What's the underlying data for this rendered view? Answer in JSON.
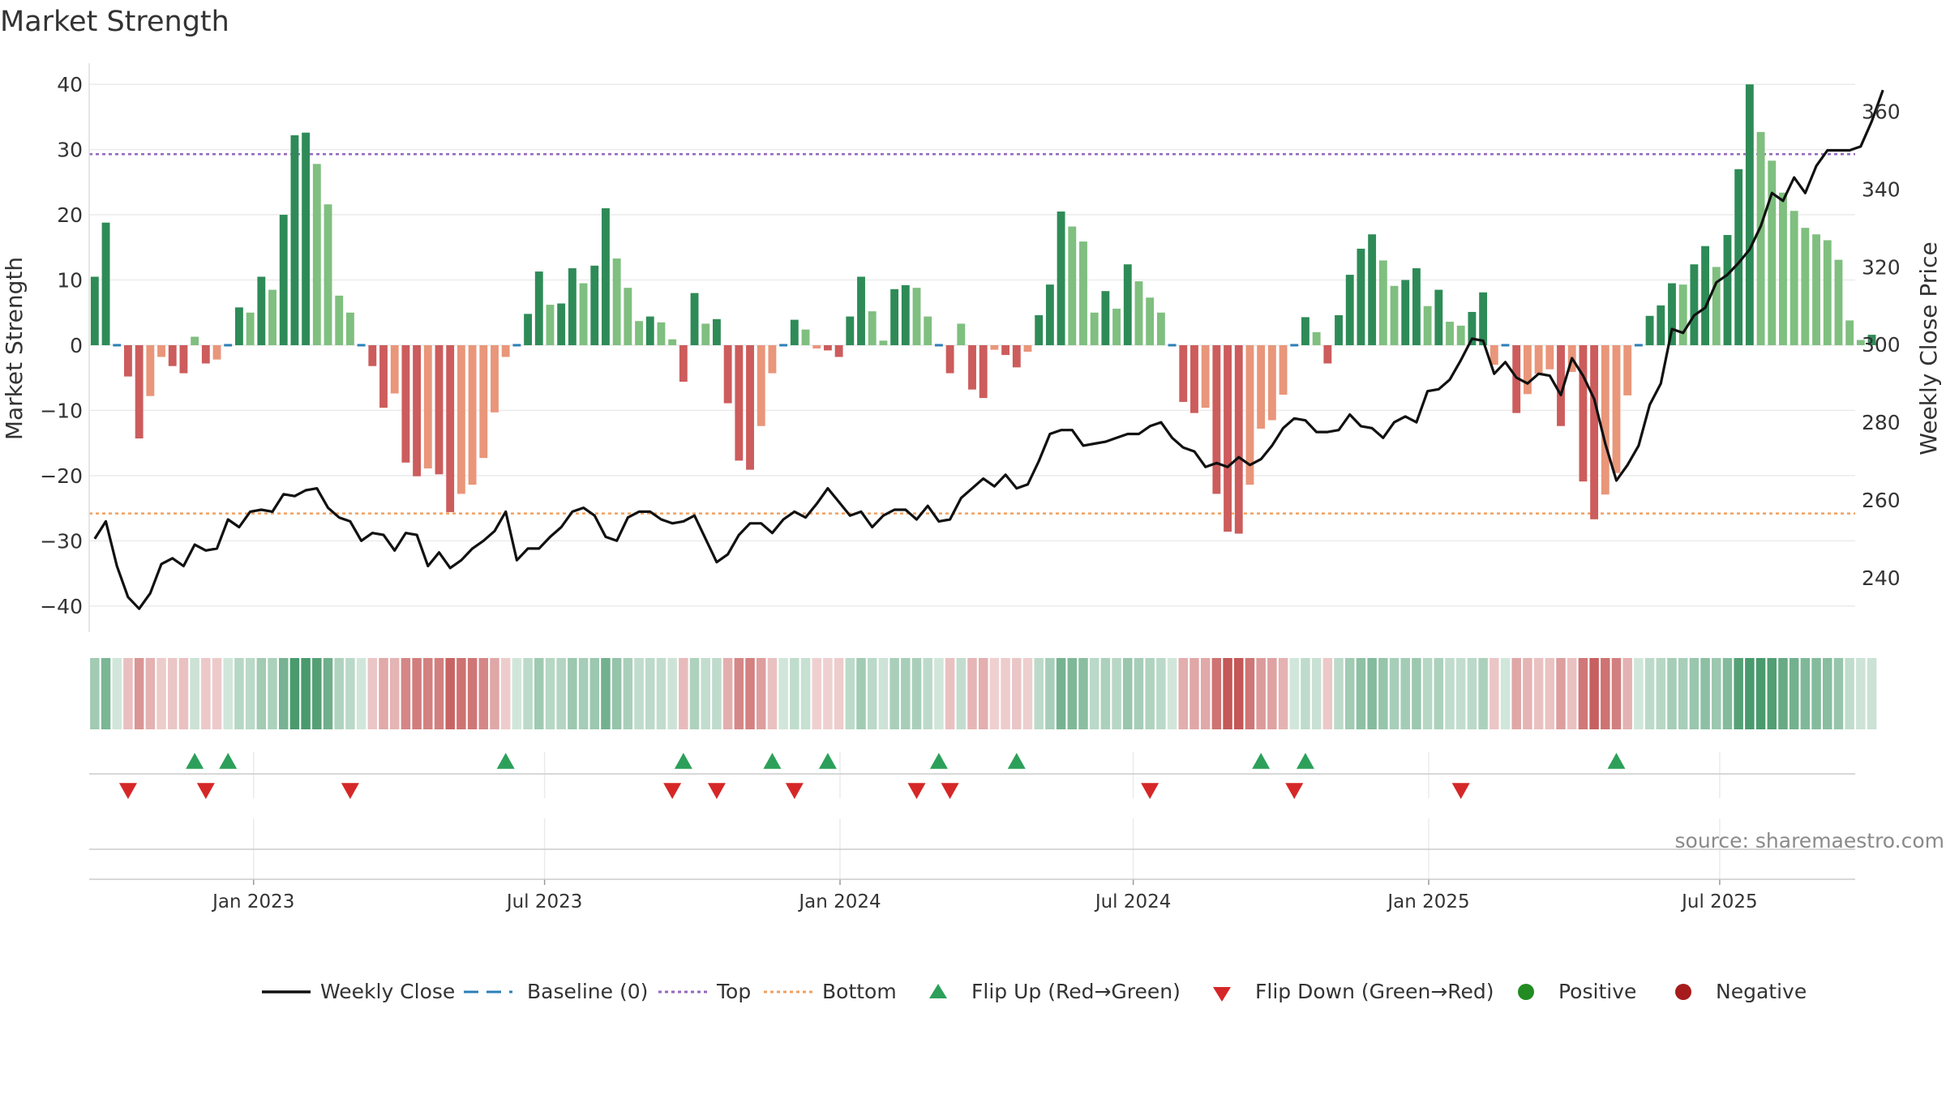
{
  "chart_data": {
    "type": "bar+line",
    "title": "Market Strength",
    "ylabel_left": "Market Strength",
    "ylabel_right": "Weekly Close Price",
    "source": "source: sharemaestro.com",
    "left_ylim": [
      -44,
      43
    ],
    "left_ticks": [
      40,
      30,
      20,
      10,
      0,
      -10,
      -20,
      -30,
      -40
    ],
    "left_tick_labels": [
      "40",
      "30",
      "20",
      "10",
      "0",
      "−10",
      "−20",
      "−30",
      "−40"
    ],
    "right_ylim": [
      226,
      372
    ],
    "right_ticks": [
      240,
      260,
      280,
      300,
      320,
      340,
      360
    ],
    "right_tick_labels": [
      "240",
      "260",
      "280",
      "300",
      "320",
      "340",
      "360"
    ],
    "top_level": 29.3,
    "bottom_level": -25.8,
    "x_range_weeks": [
      0,
      159
    ],
    "date_ticks": [
      {
        "label": "Jan 2023",
        "week": 14.8
      },
      {
        "label": "Jul 2023",
        "week": 41
      },
      {
        "label": "Jan 2024",
        "week": 67.6
      },
      {
        "label": "Jul 2024",
        "week": 94
      },
      {
        "label": "Jan 2025",
        "week": 120.6
      },
      {
        "label": "Jul 2025",
        "week": 146.8
      }
    ],
    "strength": [
      10.5,
      18.8,
      0,
      -4.8,
      -14.3,
      -7.8,
      -1.8,
      -3.2,
      -4.3,
      1.3,
      -2.8,
      -2.2,
      0,
      5.8,
      5,
      10.5,
      8.5,
      20,
      32.2,
      32.6,
      27.8,
      21.6,
      7.6,
      5,
      0,
      -3.2,
      -9.6,
      -7.4,
      -18,
      -20.1,
      -18.9,
      -19.8,
      -25.6,
      -22.8,
      -21.4,
      -17.3,
      -10.3,
      -1.8,
      0,
      4.8,
      11.3,
      6.2,
      6.4,
      11.8,
      9.5,
      12.2,
      21,
      13.3,
      8.8,
      3.7,
      4.4,
      3.5,
      0.9,
      -5.6,
      8,
      3.3,
      4,
      -8.9,
      -17.7,
      -19.1,
      -12.4,
      -4.3,
      0,
      3.9,
      2.4,
      -0.5,
      -0.8,
      -1.8,
      4.4,
      10.5,
      5.2,
      0.7,
      8.6,
      9.2,
      8.8,
      4.4,
      0,
      -4.3,
      3.3,
      -6.8,
      -8.1,
      -0.7,
      -1.5,
      -3.4,
      -1,
      4.6,
      9.3,
      20.5,
      18.2,
      15.9,
      5,
      8.3,
      5.6,
      12.4,
      9.8,
      7.3,
      5,
      0,
      -8.7,
      -10.4,
      -9.6,
      -22.8,
      -28.6,
      -28.9,
      -21.4,
      -12.8,
      -11.5,
      -7.6,
      0,
      4.3,
      2,
      -2.8,
      4.6,
      10.8,
      14.8,
      17,
      13,
      9.1,
      10,
      11.8,
      6,
      8.5,
      3.6,
      3,
      5.1,
      8.1,
      -3,
      0,
      -10.4,
      -7.5,
      -4.4,
      -3.7,
      -12.4,
      -4.1,
      -20.9,
      -26.7,
      -22.9,
      -19.6,
      -7.7,
      0,
      4.5,
      6.1,
      9.5,
      9.3,
      12.4,
      15.2,
      12,
      16.9,
      27,
      40,
      32.7,
      28.3,
      23.4,
      20.6,
      18,
      17,
      16.1,
      13.1,
      3.8,
      0.8,
      1.6
    ],
    "close": [
      250,
      254.5,
      243,
      235,
      232,
      236,
      243.5,
      245,
      243,
      248.5,
      247,
      247.5,
      255,
      253,
      257,
      257.5,
      257,
      261.5,
      261,
      262.5,
      263,
      258,
      255.5,
      254.5,
      249.5,
      251.5,
      251,
      247,
      251.5,
      251,
      243,
      246.5,
      242.5,
      244.5,
      247.5,
      249.5,
      252,
      257,
      244.5,
      247.5,
      247.5,
      250.5,
      253,
      257,
      258,
      256,
      250.5,
      249.5,
      255.5,
      257,
      257,
      255,
      254,
      254.5,
      256,
      250,
      244,
      246,
      251,
      254,
      254,
      251.5,
      255,
      257,
      255.5,
      259,
      263,
      259.5,
      256,
      257,
      253,
      256,
      257.5,
      257.5,
      255,
      258.5,
      254.5,
      255,
      260.5,
      263,
      265.5,
      263.5,
      266.5,
      263,
      264,
      270,
      277,
      278,
      278,
      274,
      274.5,
      275,
      276,
      277,
      277,
      279,
      280,
      276,
      273.5,
      272.5,
      268.5,
      269.5,
      268.5,
      271,
      269,
      270.5,
      274,
      278.5,
      281,
      280.5,
      277.5,
      277.5,
      278,
      282,
      279,
      278.5,
      276,
      280,
      281.5,
      280,
      288,
      288.5,
      291,
      296,
      301.5,
      301,
      292.5,
      295.5,
      291.5,
      290,
      292.5,
      292,
      287,
      296.5,
      292,
      286,
      274.5,
      265,
      269,
      274,
      284.5,
      290,
      304,
      303,
      307.5,
      309.5,
      316,
      318,
      321,
      324.5,
      330.5,
      339,
      337,
      343,
      339,
      346,
      350,
      350,
      350,
      351,
      357.5,
      365.5
    ],
    "flip_up_weeks": [
      9,
      12,
      37,
      53,
      61,
      66,
      76,
      83,
      105,
      109,
      137
    ],
    "flip_down_weeks": [
      3,
      10,
      23,
      52,
      56,
      63,
      74,
      77,
      95,
      108,
      123
    ],
    "legend": [
      {
        "label": "Weekly Close",
        "kind": "line-solid",
        "color": "#111111"
      },
      {
        "label": "Baseline (0)",
        "kind": "line-dash",
        "color": "#2c7fb8"
      },
      {
        "label": "Top",
        "kind": "line-dot",
        "color": "#9467bd"
      },
      {
        "label": "Bottom",
        "kind": "line-dot",
        "color": "#f0a060"
      },
      {
        "label": "Flip Up (Red→Green)",
        "kind": "tri-up",
        "color": "#2ca05a"
      },
      {
        "label": "Flip Down (Green→Red)",
        "kind": "tri-down",
        "color": "#d62728"
      },
      {
        "label": "Positive",
        "kind": "dot",
        "color": "#228b22"
      },
      {
        "label": "Negative",
        "kind": "dot",
        "color": "#a61c1c"
      }
    ],
    "colors": {
      "pos_strong": "#2e8b57",
      "pos_light": "#7fbf7f",
      "neg_strong": "#cd5c5c",
      "neg_light": "#e9967a",
      "price_line": "#111111",
      "baseline": "#2c7fb8",
      "top_line": "#9467bd",
      "bottom_line": "#f0a060",
      "flip_up": "#2ca05a",
      "flip_down": "#d62728",
      "grid": "#ebebeb",
      "axis_text": "#333333",
      "source_text": "#8a8a8a"
    }
  }
}
